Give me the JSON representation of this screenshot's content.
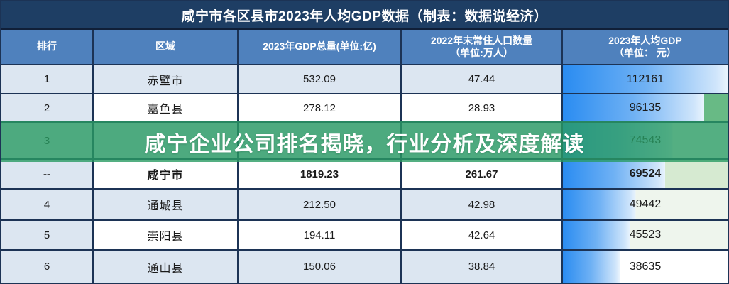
{
  "title": "咸宁市各区县市2023年人均GDP数据（制表：数据说经济）",
  "overlay": {
    "text": "咸宁企业公司排名揭晓，行业分析及深度解读",
    "green": "#299b63"
  },
  "table": {
    "columns": [
      {
        "line1": "排行",
        "line2": ""
      },
      {
        "line1": "区域",
        "line2": ""
      },
      {
        "line1": "2023年GDP总量(单位:亿)",
        "line2": ""
      },
      {
        "line1": "2022年末常住人口数量",
        "line2": "（单位:万人）"
      },
      {
        "line1": "2023年人均GDP",
        "line2": "（单位： 元）"
      }
    ],
    "max_per_capita": 112161,
    "rows": [
      {
        "rank": "1",
        "region": "赤壁市",
        "gdp": "532.09",
        "population": "47.44",
        "per_capita": "112161",
        "per_capita_value": 112161,
        "shaded": true,
        "bold": false,
        "bar_rest": "#ffffff"
      },
      {
        "rank": "2",
        "region": "嘉鱼县",
        "gdp": "278.12",
        "population": "28.93",
        "per_capita": "96135",
        "per_capita_value": 96135,
        "shaded": false,
        "bold": false,
        "bar_rest": "#68ba85"
      },
      {
        "rank": "3",
        "region": "",
        "gdp": "",
        "population": "",
        "per_capita": "74543",
        "per_capita_value": 74543,
        "shaded": true,
        "bold": false,
        "bar_rest": "#ffffff"
      },
      {
        "rank": "--",
        "region": "咸宁市",
        "gdp": "1819.23",
        "population": "261.67",
        "per_capita": "69524",
        "per_capita_value": 69524,
        "shaded": false,
        "bold": true,
        "bar_rest": "#d6ead1"
      },
      {
        "rank": "4",
        "region": "通城县",
        "gdp": "212.50",
        "population": "42.98",
        "per_capita": "49442",
        "per_capita_value": 49442,
        "shaded": true,
        "bold": false,
        "bar_rest": "#eef5ed"
      },
      {
        "rank": "5",
        "region": "崇阳县",
        "gdp": "194.11",
        "population": "42.64",
        "per_capita": "45523",
        "per_capita_value": 45523,
        "shaded": false,
        "bold": false,
        "bar_rest": "#eef5ed"
      },
      {
        "rank": "6",
        "region": "通山县",
        "gdp": "150.06",
        "population": "38.84",
        "per_capita": "38635",
        "per_capita_value": 38635,
        "shaded": true,
        "bold": false,
        "bar_rest": "#ffffff"
      }
    ]
  },
  "chart_data": {
    "type": "table",
    "title": "咸宁市各区县市2023年人均GDP数据（制表：数据说经济）",
    "columns": [
      "排行",
      "区域",
      "2023年GDP总量(单位:亿)",
      "2022年末常住人口数量（单位:万人）",
      "2023年人均GDP（单位：元）"
    ],
    "rows": [
      [
        "1",
        "赤壁市",
        532.09,
        47.44,
        112161
      ],
      [
        "2",
        null,
        278.12,
        28.93,
        96135
      ],
      [
        "3",
        null,
        null,
        null,
        74543
      ],
      [
        "--",
        "咸宁市",
        1819.23,
        261.67,
        69524
      ],
      [
        "4",
        "通城县",
        212.5,
        42.98,
        49442
      ],
      [
        "5",
        "崇阳县",
        194.11,
        42.64,
        45523
      ],
      [
        "6",
        "通山县",
        150.06,
        38.84,
        38635
      ]
    ],
    "databar_column": "2023年人均GDP（单位：元）",
    "databar_max": 112161,
    "row2_region_visible_text": "嘉鱼县",
    "notes": "row with rank 3 is covered by a green promo overlay banner; only rank and per-capita value are readable"
  },
  "colors": {
    "title_bar": "#1e3e64",
    "header": "#4f81bd",
    "row_shaded": "#dce6f1",
    "border": "#1c3355",
    "bar_start": "#2a8cf1",
    "bar_end": "#e9f4fd",
    "banner_green": "#299b63"
  }
}
